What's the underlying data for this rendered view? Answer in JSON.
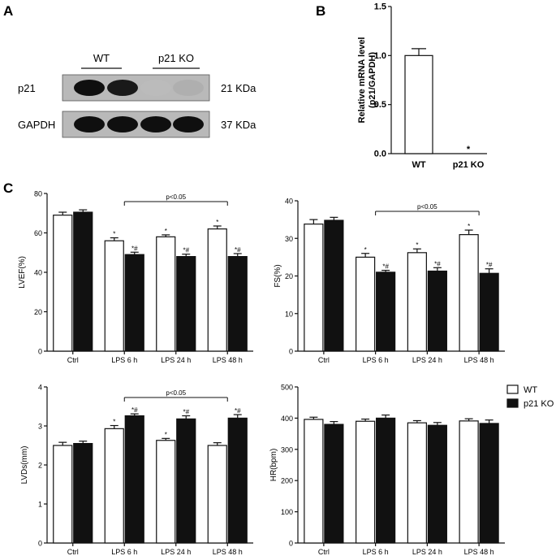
{
  "panels": {
    "A": "A",
    "B": "B",
    "C": "C"
  },
  "blot": {
    "groups": [
      "WT",
      "p21 KO"
    ],
    "rows": [
      {
        "label": "p21",
        "size": "21 KDa",
        "intensities": [
          1.0,
          0.95,
          0.12,
          0.18
        ]
      },
      {
        "label": "GAPDH",
        "size": "37 KDa",
        "intensities": [
          1.0,
          1.0,
          1.0,
          1.0
        ]
      }
    ]
  },
  "colors": {
    "wt": "#ffffff",
    "ko": "#111111",
    "axis": "#111111",
    "blot_bg": "#b9b9b9"
  },
  "legend": {
    "items": [
      {
        "label": "WT",
        "color": "#ffffff"
      },
      {
        "label": "p21 KO",
        "color": "#111111"
      }
    ]
  },
  "chart_data": [
    {
      "id": "B",
      "type": "bar",
      "ylabel_line1": "Relative mRNA level",
      "ylabel_line2": "(p21/GAPDH)",
      "categories": [
        "WT",
        "p21 KO"
      ],
      "values": [
        1.0,
        0.0
      ],
      "errors": [
        0.07,
        0.0
      ],
      "colors": [
        "#ffffff",
        "#111111"
      ],
      "ylim": [
        0,
        1.5
      ],
      "yticks": [
        "0.0",
        "0.5",
        "1.0",
        "1.5"
      ],
      "annotations": [
        "",
        "*"
      ]
    },
    {
      "id": "LVEF",
      "type": "bar",
      "ylabel": "LVEF(%)",
      "categories": [
        "Ctrl",
        "LPS 6 h",
        "LPS 24 h",
        "LPS 48 h"
      ],
      "ylim": [
        0,
        80
      ],
      "yticks": [
        "0",
        "20",
        "40",
        "60",
        "80"
      ],
      "series": [
        {
          "values": [
            69,
            56,
            58,
            62
          ],
          "errors": [
            1.5,
            1.5,
            1.0,
            1.5
          ],
          "marks": [
            "",
            "*",
            "*",
            "*"
          ]
        },
        {
          "values": [
            70.5,
            49,
            48,
            48
          ],
          "errors": [
            1.2,
            1.2,
            1.2,
            1.5
          ],
          "marks": [
            "",
            "*#",
            "*#",
            "*#"
          ]
        }
      ],
      "bracket": {
        "label": "p<0.05",
        "from": 1,
        "to": 3
      }
    },
    {
      "id": "FS",
      "type": "bar",
      "ylabel": "FS(%)",
      "categories": [
        "Ctrl",
        "LPS 6 h",
        "LPS 24 h",
        "LPS 48 h"
      ],
      "ylim": [
        0,
        40
      ],
      "yticks": [
        "0",
        "10",
        "20",
        "30",
        "40"
      ],
      "series": [
        {
          "values": [
            33.8,
            25,
            26.2,
            31
          ],
          "errors": [
            1.2,
            1.0,
            1.0,
            1.2
          ],
          "marks": [
            "",
            "*",
            "*",
            "*"
          ]
        },
        {
          "values": [
            34.8,
            21,
            21.3,
            20.7
          ],
          "errors": [
            0.8,
            0.5,
            0.9,
            1.2
          ],
          "marks": [
            "",
            "*#",
            "*#",
            "*#"
          ]
        }
      ],
      "bracket": {
        "label": "p<0.05",
        "from": 1,
        "to": 3
      }
    },
    {
      "id": "LVDs",
      "type": "bar",
      "ylabel": "LVDs(mm)",
      "categories": [
        "Ctrl",
        "LPS 6 h",
        "LPS 24 h",
        "LPS 48 h"
      ],
      "ylim": [
        0,
        4
      ],
      "yticks": [
        "0",
        "1",
        "2",
        "3",
        "4"
      ],
      "series": [
        {
          "values": [
            2.5,
            2.93,
            2.63,
            2.5
          ],
          "errors": [
            0.08,
            0.08,
            0.05,
            0.07
          ],
          "marks": [
            "",
            "*",
            "*",
            ""
          ]
        },
        {
          "values": [
            2.55,
            3.26,
            3.18,
            3.2
          ],
          "errors": [
            0.06,
            0.05,
            0.08,
            0.09
          ],
          "marks": [
            "",
            "*#",
            "*#",
            "*#"
          ]
        }
      ],
      "bracket": {
        "label": "p<0.05",
        "from": 1,
        "to": 3
      }
    },
    {
      "id": "HR",
      "type": "bar",
      "ylabel": "HR(bpm)",
      "categories": [
        "Ctrl",
        "LPS 6 h",
        "LPS 24 h",
        "LPS 48 h"
      ],
      "ylim": [
        0,
        500
      ],
      "yticks": [
        "0",
        "100",
        "200",
        "300",
        "400",
        "500"
      ],
      "series": [
        {
          "values": [
            396,
            390,
            385,
            391
          ],
          "errors": [
            7,
            7,
            7,
            7
          ],
          "marks": [
            "",
            "",
            "",
            ""
          ]
        },
        {
          "values": [
            380,
            400,
            377,
            383
          ],
          "errors": [
            9,
            10,
            9,
            11
          ],
          "marks": [
            "",
            "",
            "",
            ""
          ]
        }
      ]
    }
  ]
}
